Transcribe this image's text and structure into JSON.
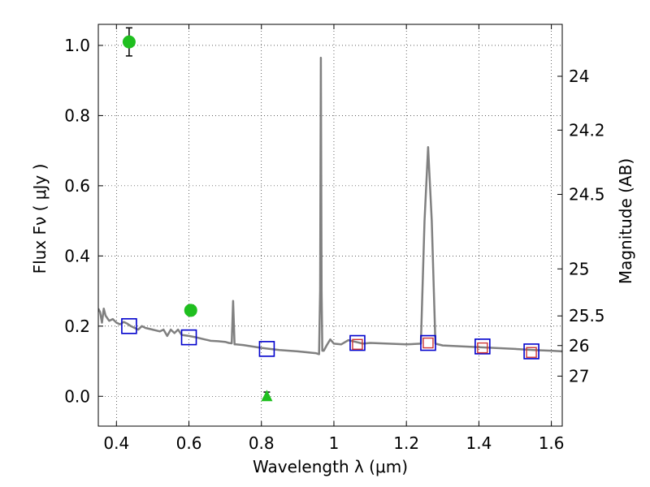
{
  "chart_data": {
    "type": "scatter",
    "xlabel": "Wavelength  λ (μm)",
    "ylabel": "Flux  Fν  ( μJy )",
    "y2label": "Magnitude (AB)",
    "xlim": [
      0.35,
      1.63
    ],
    "ylim": [
      -0.085,
      1.06
    ],
    "grid": true,
    "x_ticks": [
      {
        "value": 0.4,
        "label": "0.4"
      },
      {
        "value": 0.6,
        "label": "0.6"
      },
      {
        "value": 0.8,
        "label": "0.8"
      },
      {
        "value": 1.0,
        "label": "1"
      },
      {
        "value": 1.2,
        "label": "1.2"
      },
      {
        "value": 1.4,
        "label": "1.4"
      },
      {
        "value": 1.6,
        "label": "1.6"
      }
    ],
    "y_ticks": [
      {
        "value": 0.0,
        "label": "0.0"
      },
      {
        "value": 0.2,
        "label": "0.2"
      },
      {
        "value": 0.4,
        "label": "0.4"
      },
      {
        "value": 0.6,
        "label": "0.6"
      },
      {
        "value": 0.8,
        "label": "0.8"
      },
      {
        "value": 1.0,
        "label": "1.0"
      }
    ],
    "y2_ticks": [
      {
        "mag": 24,
        "label": "24"
      },
      {
        "mag": 24.2,
        "label": "24.2"
      },
      {
        "mag": 24.5,
        "label": "24.5"
      },
      {
        "mag": 25,
        "label": "25"
      },
      {
        "mag": 25.5,
        "label": "25.5"
      },
      {
        "mag": 26,
        "label": "26"
      },
      {
        "mag": 27,
        "label": "27"
      }
    ],
    "colors": {
      "spectrum": "#808080",
      "model_box": "#0000cc",
      "observed_box": "#cc3333",
      "observed_point": "#1fbf1f",
      "errorbar": "#000000"
    },
    "series": [
      {
        "kind": "spectrum",
        "x": [
          0.35,
          0.355,
          0.36,
          0.365,
          0.37,
          0.38,
          0.39,
          0.4,
          0.41,
          0.42,
          0.43,
          0.44,
          0.45,
          0.46,
          0.47,
          0.48,
          0.5,
          0.52,
          0.53,
          0.54,
          0.55,
          0.56,
          0.57,
          0.58,
          0.6,
          0.62,
          0.64,
          0.66,
          0.68,
          0.7,
          0.71,
          0.718,
          0.722,
          0.726,
          0.73,
          0.75,
          0.8,
          0.85,
          0.9,
          0.95,
          0.959,
          0.962,
          0.964,
          0.966,
          0.968,
          0.972,
          0.98,
          0.99,
          1.0,
          1.02,
          1.04,
          1.06,
          1.08,
          1.1,
          1.15,
          1.2,
          1.24,
          1.25,
          1.26,
          1.27,
          1.28,
          1.3,
          1.4,
          1.5,
          1.55,
          1.6,
          1.63
        ],
        "y": [
          0.25,
          0.24,
          0.21,
          0.25,
          0.23,
          0.215,
          0.22,
          0.21,
          0.205,
          0.212,
          0.207,
          0.2,
          0.195,
          0.19,
          0.2,
          0.195,
          0.19,
          0.185,
          0.19,
          0.172,
          0.19,
          0.18,
          0.19,
          0.175,
          0.172,
          0.168,
          0.163,
          0.158,
          0.157,
          0.155,
          0.152,
          0.151,
          0.272,
          0.148,
          0.148,
          0.146,
          0.138,
          0.132,
          0.128,
          0.123,
          0.12,
          0.3,
          0.965,
          0.3,
          0.13,
          0.13,
          0.145,
          0.162,
          0.15,
          0.148,
          0.16,
          0.155,
          0.15,
          0.152,
          0.15,
          0.148,
          0.15,
          0.5,
          0.71,
          0.5,
          0.15,
          0.145,
          0.14,
          0.135,
          0.132,
          0.13,
          0.128
        ]
      },
      {
        "kind": "model_photometry",
        "x": [
          0.435,
          0.6,
          0.815,
          1.065,
          1.26,
          1.41,
          1.545
        ],
        "y": [
          0.2,
          0.168,
          0.135,
          0.152,
          0.152,
          0.142,
          0.128
        ]
      },
      {
        "kind": "observed_photometry_box",
        "x": [
          1.065,
          1.26,
          1.41,
          1.545
        ],
        "y": [
          0.148,
          0.152,
          0.138,
          0.125
        ]
      },
      {
        "kind": "observed_photometry_point",
        "x": [
          0.435,
          0.605
        ],
        "y": [
          1.01,
          0.245
        ],
        "err": [
          0.04,
          0.015
        ]
      },
      {
        "kind": "upper_limit_triangle",
        "x": [
          0.815
        ],
        "y": [
          0.0
        ],
        "err": [
          0.012
        ]
      }
    ]
  }
}
